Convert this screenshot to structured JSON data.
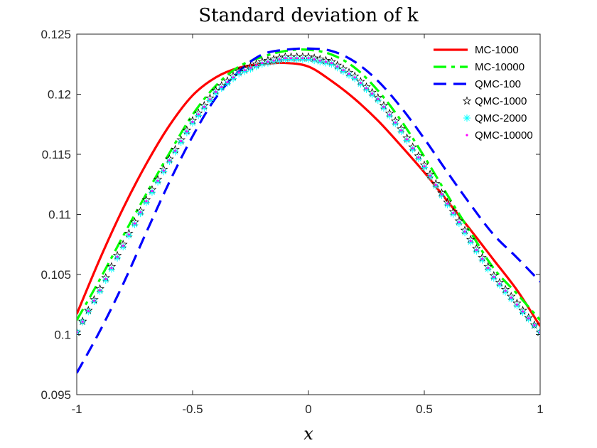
{
  "chart_data": {
    "type": "line",
    "title": "Standard deviation of k",
    "xlabel": "x",
    "ylabel": "",
    "xlim": [
      -1,
      1
    ],
    "ylim": [
      0.095,
      0.125
    ],
    "xticks": [
      -1,
      -0.5,
      0,
      0.5,
      1
    ],
    "xtick_labels": [
      "-1",
      "-0.5",
      "0",
      "0.5",
      "1"
    ],
    "yticks": [
      0.095,
      0.1,
      0.105,
      0.11,
      0.115,
      0.12,
      0.125
    ],
    "ytick_labels": [
      "0.095",
      "0.1",
      "0.105",
      "0.11",
      "0.115",
      "0.12",
      "0.125"
    ],
    "grid": false,
    "legend_position": "top-right",
    "series": [
      {
        "name": "MC-1000",
        "style": "solid",
        "color": "#ff0000",
        "x": [
          -1,
          -0.9,
          -0.8,
          -0.7,
          -0.6,
          -0.5,
          -0.4,
          -0.3,
          -0.2,
          -0.1,
          0,
          0.1,
          0.2,
          0.3,
          0.4,
          0.5,
          0.6,
          0.7,
          0.8,
          0.9,
          1
        ],
        "y": [
          0.1017,
          0.1063,
          0.1105,
          0.1142,
          0.1174,
          0.1199,
          0.1214,
          0.1222,
          0.1225,
          0.1226,
          0.1223,
          0.1211,
          0.1196,
          0.1178,
          0.1157,
          0.1135,
          0.1111,
          0.1087,
          0.1062,
          0.1037,
          0.1007
        ]
      },
      {
        "name": "MC-10000",
        "style": "dash-dot",
        "color": "#00ff00",
        "x": [
          -1,
          -0.9,
          -0.8,
          -0.7,
          -0.6,
          -0.5,
          -0.4,
          -0.3,
          -0.2,
          -0.1,
          0,
          0.1,
          0.2,
          0.3,
          0.4,
          0.5,
          0.6,
          0.7,
          0.8,
          0.9,
          1
        ],
        "y": [
          0.1012,
          0.1046,
          0.1082,
          0.1117,
          0.1151,
          0.1183,
          0.1207,
          0.1223,
          0.1231,
          0.1236,
          0.1237,
          0.1233,
          0.1222,
          0.1203,
          0.1178,
          0.1148,
          0.1116,
          0.1085,
          0.1055,
          0.1034,
          0.1012
        ]
      },
      {
        "name": "QMC-100",
        "style": "dashed",
        "color": "#0000ff",
        "x": [
          -1,
          -0.9,
          -0.8,
          -0.7,
          -0.6,
          -0.5,
          -0.4,
          -0.3,
          -0.2,
          -0.1,
          0,
          0.1,
          0.2,
          0.3,
          0.4,
          0.5,
          0.6,
          0.7,
          0.8,
          0.9,
          1
        ],
        "y": [
          0.0968,
          0.1003,
          0.1042,
          0.1085,
          0.1127,
          0.1165,
          0.1197,
          0.1219,
          0.1233,
          0.1237,
          0.1238,
          0.1236,
          0.1227,
          0.1211,
          0.1189,
          0.1163,
          0.1135,
          0.1108,
          0.1083,
          0.1064,
          0.1044
        ]
      },
      {
        "name": "QMC-1000",
        "style": "markers-star",
        "color": "#000000",
        "x": [
          -1,
          -0.9,
          -0.8,
          -0.7,
          -0.6,
          -0.5,
          -0.4,
          -0.3,
          -0.2,
          -0.1,
          0,
          0.1,
          0.2,
          0.3,
          0.4,
          0.5,
          0.6,
          0.7,
          0.8,
          0.9,
          1
        ],
        "y": [
          0.1002,
          0.1038,
          0.1075,
          0.1112,
          0.1146,
          0.1178,
          0.1203,
          0.1219,
          0.1227,
          0.1231,
          0.1231,
          0.1227,
          0.1215,
          0.1197,
          0.1171,
          0.1141,
          0.111,
          0.1079,
          0.1049,
          0.1026,
          0.1002
        ]
      },
      {
        "name": "QMC-2000",
        "style": "markers-asterisk",
        "color": "#00ffff",
        "x": [
          -1,
          -0.9,
          -0.8,
          -0.7,
          -0.6,
          -0.5,
          -0.4,
          -0.3,
          -0.2,
          -0.1,
          0,
          0.1,
          0.2,
          0.3,
          0.4,
          0.5,
          0.6,
          0.7,
          0.8,
          0.9,
          1
        ],
        "y": [
          0.1002,
          0.1036,
          0.1073,
          0.111,
          0.1144,
          0.1176,
          0.1201,
          0.1217,
          0.1225,
          0.1229,
          0.1229,
          0.1225,
          0.1213,
          0.1195,
          0.1169,
          0.1139,
          0.1108,
          0.1077,
          0.1047,
          0.1024,
          0.1002
        ]
      },
      {
        "name": "QMC-10000",
        "style": "markers-dot",
        "color": "#ff00ff",
        "x": [
          -1,
          -0.9,
          -0.8,
          -0.7,
          -0.6,
          -0.5,
          -0.4,
          -0.3,
          -0.2,
          -0.1,
          0,
          0.1,
          0.2,
          0.3,
          0.4,
          0.5,
          0.6,
          0.7,
          0.8,
          0.9,
          1
        ],
        "y": [
          0.1002,
          0.1037,
          0.1074,
          0.1111,
          0.1145,
          0.1177,
          0.1202,
          0.1218,
          0.1226,
          0.123,
          0.123,
          0.1226,
          0.1214,
          0.1196,
          0.117,
          0.114,
          0.1109,
          0.1078,
          0.1048,
          0.1025,
          0.1002
        ]
      }
    ]
  }
}
